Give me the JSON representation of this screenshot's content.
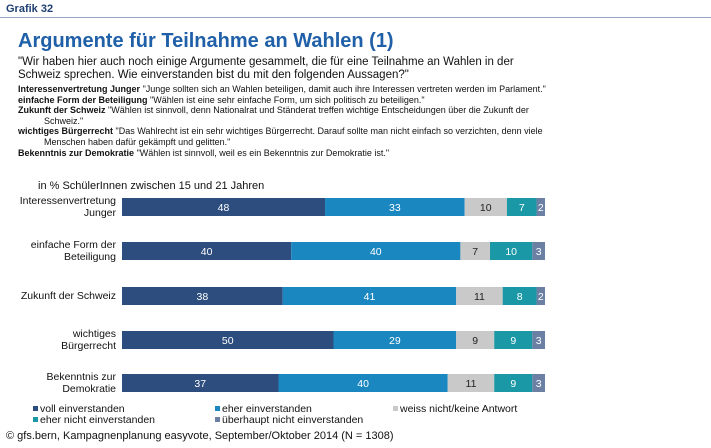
{
  "header": {
    "label": "Grafik 32",
    "title": "Argumente für Teilnahme an Wahlen (1)",
    "question": "\"Wir haben hier auch noch einige Argumente gesammelt, die für eine Teilnahme an Wahlen in der Schweiz sprechen. Wie einverstanden bist du mit den folgenden Aussagen?\"",
    "arguments": [
      {
        "label": "Interessenvertretung Junger",
        "text": "\"Junge sollten sich an Wahlen beteiligen, damit auch ihre Interessen vertreten werden im Parlament.\""
      },
      {
        "label": "einfache Form der Beteiligung",
        "text": "\"Wählen ist eine sehr einfache Form, um sich politisch zu beteiligen.\""
      },
      {
        "label": "Zukunft der Schweiz",
        "text": "\"Wählen ist sinnvoll, denn Nationalrat und Ständerat treffen wichtige Entscheidungen über die Zukunft der Schweiz.\""
      },
      {
        "label": "wichtiges Bürgerrecht",
        "text": "\"Das Wahlrecht ist ein sehr wichtiges Bürgerrecht. Darauf sollte man nicht einfach so verzichten, denn viele Menschen haben dafür gekämpft und gelitten.\""
      },
      {
        "label": "Bekenntnis zur Demokratie",
        "text": "\"Wählen ist sinnvoll, weil es ein Bekenntnis zur Demokratie ist.\""
      }
    ]
  },
  "chart_data": {
    "type": "stacked-barh",
    "subtitle": "in % SchülerInnen zwischen 15 und 21 Jahren",
    "source": "© gfs.bern, Kampagnenplanung easyvote, September/Oktober 2014 (N = 1308)",
    "categories": [
      [
        "Interessenvertretung",
        "Junger"
      ],
      [
        "einfache Form der",
        "Beteiligung"
      ],
      [
        "Zukunft der Schweiz"
      ],
      [
        "wichtiges",
        "Bürgerrecht"
      ],
      [
        "Bekenntnis zur",
        "Demokratie"
      ]
    ],
    "xlim": [
      0,
      100
    ],
    "series": [
      {
        "name": "voll einverstanden",
        "color": "#2d4d7e",
        "values": [
          48,
          40,
          38,
          50,
          37
        ]
      },
      {
        "name": "eher einverstanden",
        "color": "#1a87c0",
        "values": [
          33,
          40,
          41,
          29,
          40
        ]
      },
      {
        "name": "weiss nicht/keine Antwort",
        "color": "#c9c9c9",
        "values": [
          10,
          7,
          11,
          9,
          11
        ]
      },
      {
        "name": "eher nicht einverstanden",
        "color": "#1a98a6",
        "values": [
          7,
          10,
          8,
          9,
          9
        ]
      },
      {
        "name": "überhaupt nicht einverstanden",
        "color": "#6b80a3",
        "values": [
          2,
          3,
          2,
          3,
          3
        ]
      }
    ]
  }
}
